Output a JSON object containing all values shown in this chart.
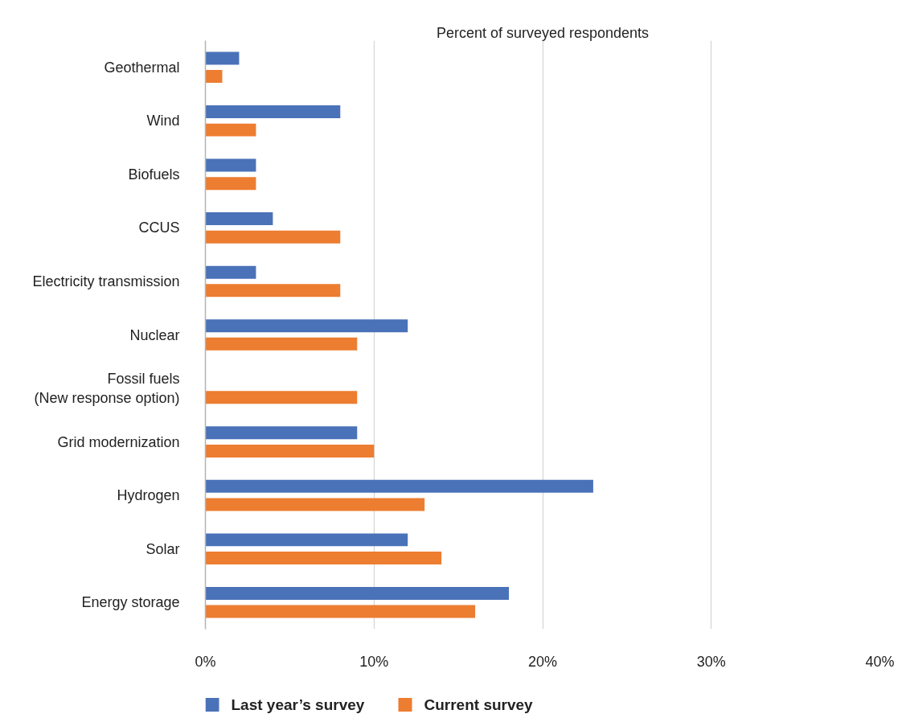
{
  "chart_data": {
    "type": "bar",
    "orientation": "horizontal",
    "xlabel": "Percent of surveyed respondents",
    "categories": [
      "Geothermal",
      "Wind",
      "Biofuels",
      "CCUS",
      "Electricity transmission",
      "Nuclear",
      "Fossil fuels\n(New response option)",
      "Grid modernization",
      "Hydrogen",
      "Solar",
      "Energy storage"
    ],
    "series": [
      {
        "name": "Last year’s survey",
        "color": "#4a72b8",
        "values": [
          2,
          8,
          3,
          4,
          3,
          12,
          null,
          9,
          23,
          12,
          18
        ]
      },
      {
        "name": "Current survey",
        "color": "#ed7d31",
        "values": [
          1,
          3,
          3,
          8,
          8,
          9,
          9,
          10,
          13,
          14,
          16
        ]
      }
    ],
    "xlim": [
      0,
      40
    ],
    "xticks": [
      {
        "value": 0,
        "label": "0%"
      },
      {
        "value": 10,
        "label": "10%"
      },
      {
        "value": 20,
        "label": "20%"
      },
      {
        "value": 30,
        "label": "30%"
      },
      {
        "value": 40,
        "label": "40%"
      }
    ],
    "grid": "x",
    "legend": "bottom"
  }
}
